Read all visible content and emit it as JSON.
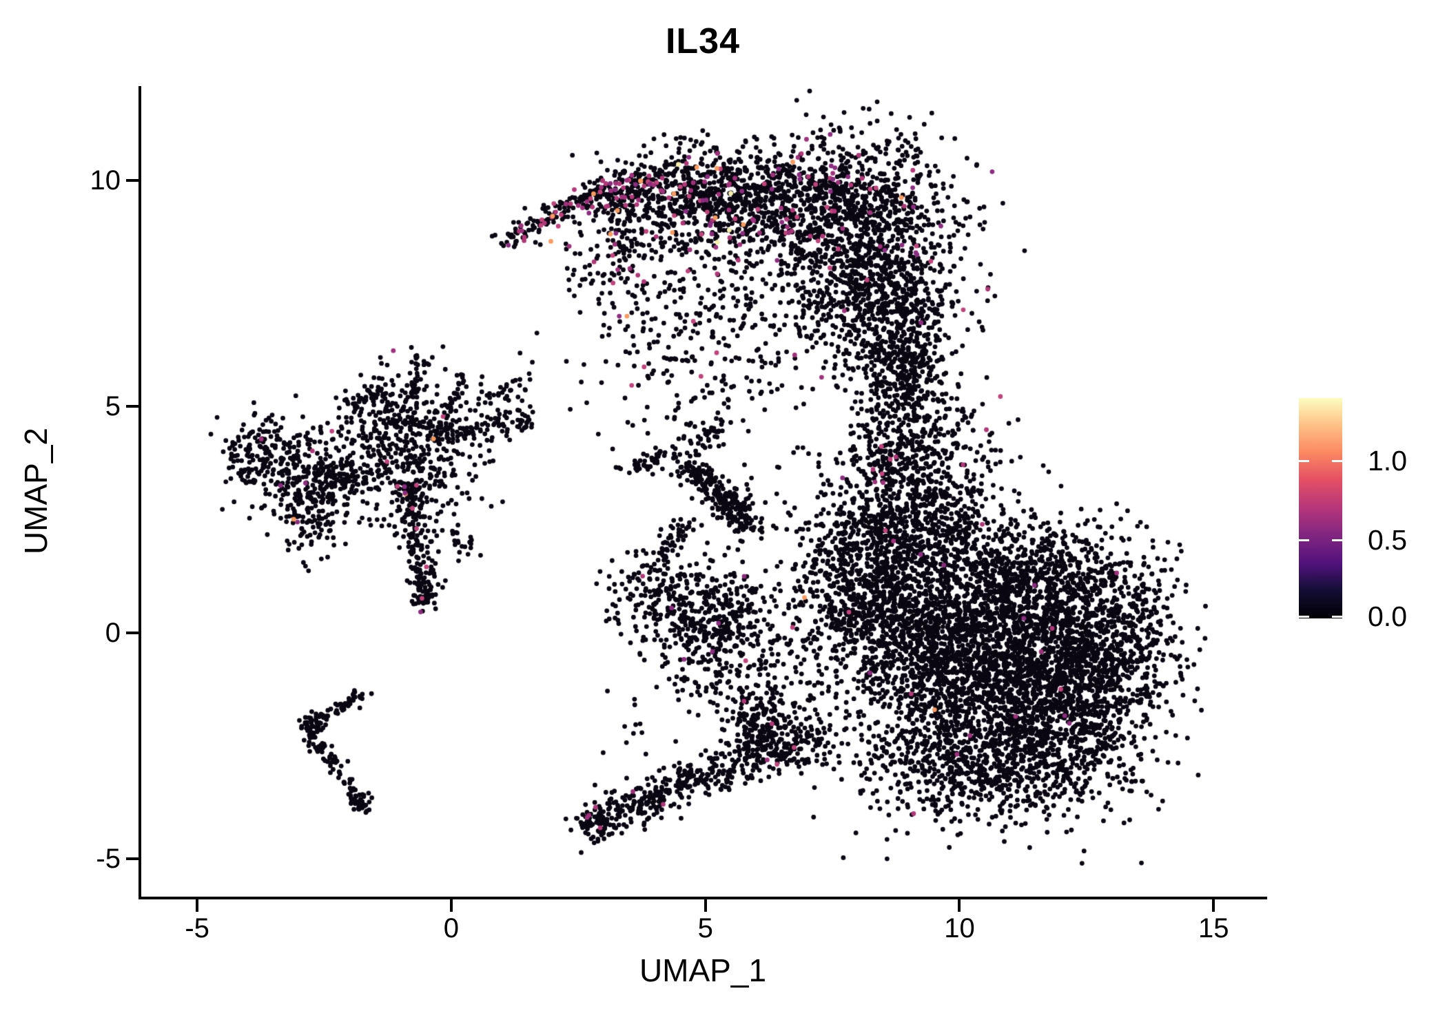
{
  "title": "IL34",
  "axes": {
    "x": {
      "label": "UMAP_1",
      "ticks": [
        -5,
        0,
        5,
        10,
        15
      ],
      "range": [
        -6.1,
        16.0
      ]
    },
    "y": {
      "label": "UMAP_2",
      "ticks": [
        -5,
        0,
        5,
        10
      ],
      "range": [
        -5.83,
        12.08
      ]
    }
  },
  "colorbar": {
    "max_value": 1.39,
    "ticks": [
      {
        "value": 1.0,
        "label": "1.0"
      },
      {
        "value": 0.5,
        "label": "0.5"
      },
      {
        "value": 0.0,
        "label": "0.0"
      }
    ],
    "colormap": "magma",
    "gradient": [
      [
        0.0,
        "#000004"
      ],
      [
        0.13,
        "#140e36"
      ],
      [
        0.25,
        "#51127c"
      ],
      [
        0.38,
        "#832681"
      ],
      [
        0.5,
        "#b5367a"
      ],
      [
        0.63,
        "#e55064"
      ],
      [
        0.75,
        "#fb8761"
      ],
      [
        0.88,
        "#fec287"
      ],
      [
        1.0,
        "#fcfdbf"
      ]
    ]
  },
  "chart_data": {
    "type": "scatter",
    "title": "IL34",
    "xlabel": "UMAP_1",
    "ylabel": "UMAP_2",
    "xlim": [
      -6.1,
      16.0
    ],
    "ylim": [
      -5.83,
      12.08
    ],
    "grid": false,
    "legend_position": "right-colorbar",
    "point_radius_px": 3.4,
    "expression_range": [
      0.0,
      1.39
    ],
    "colors": {
      "zero": "#0a0612",
      "magenta_shades": [
        "#b13778",
        "#a0327c",
        "#c2447c",
        "#8c2d80"
      ],
      "high_orange": "#f99a5e",
      "max_yellow": "#f4eeab"
    },
    "seed": 1234,
    "clusters": [
      {
        "name": "top-crescent",
        "blobs": [
          {
            "x": 5.22,
            "y": 9.65,
            "sx": 0.95,
            "sy": 0.58,
            "n": 700,
            "m": 0.08,
            "o": 0.012,
            "yl": 0.003
          },
          {
            "x": 7.79,
            "y": 9.42,
            "sx": 1.08,
            "sy": 0.84,
            "n": 950,
            "m": 0.045,
            "o": 0.004,
            "yl": 0.001
          },
          {
            "x": 8.33,
            "y": 7.6,
            "sx": 0.88,
            "sy": 0.84,
            "n": 700,
            "m": 0.02
          },
          {
            "x": 8.81,
            "y": 5.92,
            "sx": 0.54,
            "sy": 0.68,
            "n": 300,
            "m": 0.015
          },
          {
            "x": 9.15,
            "y": 4.09,
            "sx": 0.81,
            "sy": 0.68,
            "n": 350,
            "m": 0.01
          },
          {
            "x": 4.95,
            "y": 6.83,
            "sx": 1.22,
            "sy": 1.37,
            "n": 380,
            "m": 0.03,
            "o": 0.005
          },
          {
            "x": 3.39,
            "y": 8.66,
            "sx": 0.61,
            "sy": 0.68,
            "n": 180,
            "m": 0.08,
            "o": 0.01
          }
        ],
        "strokes": [
          {
            "x1": 1.04,
            "y1": 8.66,
            "x2": 2.64,
            "y2": 9.6,
            "s": 0.13,
            "n": 110,
            "m": 0.22,
            "o": 0.02
          },
          {
            "x1": 2.64,
            "y1": 9.6,
            "x2": 4.2,
            "y2": 10.06,
            "s": 0.19,
            "n": 160,
            "m": 0.16,
            "o": 0.015,
            "yl": 0.003
          }
        ]
      },
      {
        "name": "neck",
        "blobs": [
          {
            "x": 8.74,
            "y": 3.18,
            "sx": 0.47,
            "sy": 0.84,
            "n": 170,
            "m": 0.012
          },
          {
            "x": 8.06,
            "y": 2.27,
            "sx": 0.61,
            "sy": 0.68,
            "n": 90
          }
        ],
        "strokes": [
          {
            "x1": 8.98,
            "y1": 8.05,
            "x2": 8.96,
            "y2": 4.7,
            "s": 0.19,
            "n": 130,
            "m": 0.01
          }
        ]
      },
      {
        "name": "right-mass",
        "blobs": [
          {
            "x": 8.47,
            "y": 0.9,
            "sx": 1.02,
            "sy": 0.99,
            "n": 1100,
            "m": 0.008
          },
          {
            "x": 10.5,
            "y": -0.47,
            "sx": 1.36,
            "sy": 1.22,
            "n": 2400,
            "m": 0.004
          },
          {
            "x": 12.47,
            "y": -1.08,
            "sx": 0.81,
            "sy": 1.14,
            "n": 1000,
            "m": 0.005
          },
          {
            "x": 10.5,
            "y": -2.91,
            "sx": 1.29,
            "sy": 0.64,
            "n": 800,
            "m": 0.004
          },
          {
            "x": 9.55,
            "y": 2.42,
            "sx": 0.75,
            "sy": 0.61,
            "n": 320,
            "m": 0.006
          },
          {
            "x": 13.62,
            "y": 0.21,
            "sx": 0.38,
            "sy": 0.84,
            "n": 130
          },
          {
            "x": 11.86,
            "y": 1.2,
            "sx": 0.81,
            "sy": 0.68,
            "n": 500,
            "m": 0.004
          }
        ]
      },
      {
        "name": "bottom-center",
        "blobs": [
          {
            "x": 5.15,
            "y": 0.21,
            "sx": 0.57,
            "sy": 0.61,
            "n": 420,
            "m": 0.012
          },
          {
            "x": 4.0,
            "y": 0.9,
            "sx": 0.54,
            "sy": 0.53,
            "n": 130,
            "m": 0.01
          },
          {
            "x": 2.86,
            "y": -4.23,
            "sx": 0.22,
            "sy": 0.2,
            "n": 80,
            "m": 0.02
          },
          {
            "x": 6.1,
            "y": -2.02,
            "sx": 0.35,
            "sy": 0.35,
            "n": 130
          },
          {
            "x": 5.76,
            "y": -1.23,
            "sx": 0.75,
            "sy": 0.46,
            "n": 90
          },
          {
            "x": 3.32,
            "y": -2.15,
            "sx": 0.54,
            "sy": 0.84,
            "n": 15
          }
        ],
        "strokes": [
          {
            "x1": 2.98,
            "y1": -4.12,
            "x2": 5.08,
            "y2": -3.14,
            "s": 0.23,
            "n": 220,
            "m": 0.01
          },
          {
            "x1": 5.08,
            "y1": -3.14,
            "x2": 7.18,
            "y2": -2.27,
            "s": 0.26,
            "n": 260,
            "m": 0.008
          },
          {
            "x1": 4.07,
            "y1": 1.58,
            "x2": 4.67,
            "y2": 2.42,
            "s": 0.14,
            "n": 45
          }
        ]
      },
      {
        "name": "mid-streak",
        "blobs": [
          {
            "x": 5.56,
            "y": 2.88,
            "sx": 0.26,
            "sy": 0.26,
            "n": 60
          }
        ],
        "strokes": [
          {
            "x1": 4.51,
            "y1": 3.82,
            "x2": 5.92,
            "y2": 2.3,
            "s": 0.16,
            "n": 200
          },
          {
            "x1": 5.24,
            "y1": 4.63,
            "x2": 4.81,
            "y2": 4.02,
            "s": 0.09,
            "n": 35
          },
          {
            "x1": 3.48,
            "y1": 3.59,
            "x2": 4.34,
            "y2": 4.02,
            "s": 0.1,
            "n": 45
          }
        ]
      },
      {
        "name": "left-group",
        "blobs": [
          {
            "x": -3.79,
            "y": 3.97,
            "sx": 0.37,
            "sy": 0.43,
            "n": 150,
            "m": 0.01
          },
          {
            "x": -2.75,
            "y": 3.26,
            "sx": 0.43,
            "sy": 0.68,
            "n": 320,
            "m": 0.015
          },
          {
            "x": -0.85,
            "y": 4.17,
            "sx": 0.68,
            "sy": 0.79,
            "n": 520,
            "m": 0.02,
            "o": 0.004
          },
          {
            "x": -0.51,
            "y": 0.78,
            "sx": 0.17,
            "sy": 0.15,
            "n": 40,
            "m": 0.05
          }
        ],
        "strokes": [
          {
            "x1": -2.51,
            "y1": 3.49,
            "x2": -1.49,
            "y2": 3.33,
            "s": 0.14,
            "n": 55
          },
          {
            "x1": -0.65,
            "y1": 6.26,
            "x2": -0.77,
            "y2": 5.24,
            "s": 0.07,
            "n": 30
          },
          {
            "x1": 0.18,
            "y1": 5.65,
            "x2": -0.09,
            "y2": 4.78,
            "s": 0.07,
            "n": 28
          },
          {
            "x1": -2.07,
            "y1": 5.04,
            "x2": -1.29,
            "y2": 5.28,
            "s": 0.09,
            "n": 35
          },
          {
            "x1": -0.14,
            "y1": 4.4,
            "x2": 1.63,
            "y2": 4.7,
            "s": 0.13,
            "n": 80
          },
          {
            "x1": 0.47,
            "y1": 5.01,
            "x2": 1.49,
            "y2": 5.62,
            "s": 0.11,
            "n": 30
          },
          {
            "x1": -0.85,
            "y1": 3.33,
            "x2": -0.5,
            "y2": 0.93,
            "s": 0.16,
            "n": 170,
            "m": 0.04,
            "o": 0.012
          },
          {
            "x1": -0.2,
            "y1": 2.42,
            "x2": 0.47,
            "y2": 1.81,
            "s": 0.17,
            "n": 25
          }
        ]
      },
      {
        "name": "bottom-left-v",
        "blobs": [
          {
            "x": -2.75,
            "y": -2.15,
            "sx": 0.12,
            "sy": 0.2,
            "n": 55
          },
          {
            "x": -1.78,
            "y": -3.76,
            "sx": 0.11,
            "sy": 0.12,
            "n": 28
          }
        ],
        "strokes": [
          {
            "x1": -1.65,
            "y1": -1.28,
            "x2": -2.7,
            "y2": -1.99,
            "s": 0.07,
            "n": 50
          },
          {
            "x1": -2.67,
            "y1": -2.37,
            "x2": -1.86,
            "y2": -3.64,
            "s": 0.09,
            "n": 60
          }
        ]
      }
    ],
    "extra_points": {
      "black": [
        [
          6.91,
          7.44
        ],
        [
          6.92,
          4.09
        ],
        [
          7.03,
          3.96
        ],
        [
          -1.68,
          -3.97
        ]
      ],
      "magenta": [
        [
          4.17,
          -3.79
        ],
        [
          2.93,
          -4.31
        ],
        [
          5.76,
          -1.51
        ],
        [
          6.31,
          -2.01
        ]
      ],
      "orange": [
        [
          3.73,
          9.98
        ],
        [
          2.8,
          9.7
        ],
        [
          3.27,
          9.33
        ],
        [
          4.38,
          9.7
        ],
        [
          1.96,
          8.65
        ],
        [
          -3.1,
          2.51
        ],
        [
          9.51,
          -1.7
        ],
        [
          6.95,
          0.78
        ]
      ],
      "yellow": [
        [
          5.5,
          9.71
        ]
      ]
    }
  }
}
